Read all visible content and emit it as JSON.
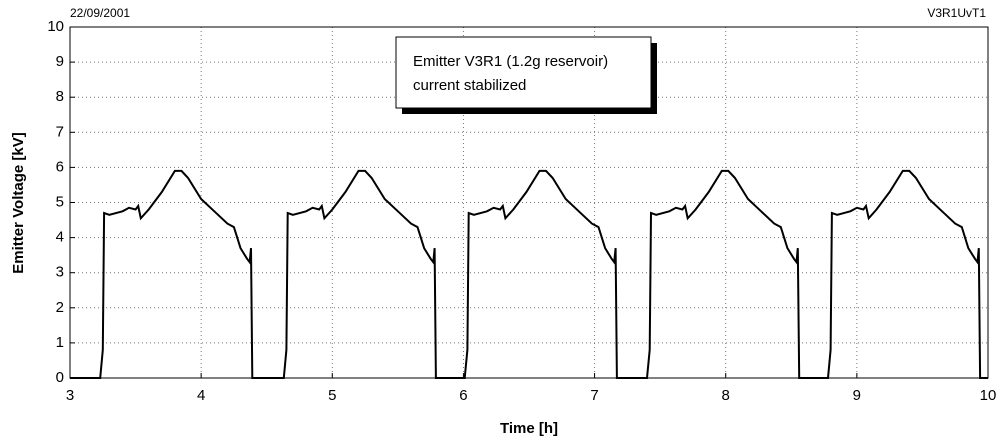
{
  "chart_data": {
    "type": "line",
    "header_left": "22/09/2001",
    "header_right": "V3R1UvT1",
    "annotation": [
      "Emitter V3R1 (1.2g reservoir)",
      "current stabilized"
    ],
    "x_label": "Time [h]",
    "y_label": "Emitter Voltage [kV]",
    "xlim": [
      3,
      10
    ],
    "xticks": [
      3,
      4,
      5,
      6,
      7,
      8,
      9,
      10
    ],
    "ylim": [
      0,
      10
    ],
    "yticks": [
      0,
      1,
      2,
      3,
      4,
      5,
      6,
      7,
      8,
      9,
      10
    ],
    "grid": true,
    "x": [
      3,
      3.23,
      3.25,
      3.26,
      3.3,
      3.4,
      3.45,
      3.5,
      3.52,
      3.54,
      3.6,
      3.7,
      3.8,
      3.85,
      3.9,
      4.0,
      4.1,
      4.2,
      4.25,
      4.3,
      4.35,
      4.37,
      4.38,
      4.39,
      4.63,
      4.65,
      4.66,
      4.7,
      4.8,
      4.85,
      4.9,
      4.92,
      4.94,
      5.0,
      5.1,
      5.2,
      5.25,
      5.3,
      5.4,
      5.5,
      5.6,
      5.65,
      5.7,
      5.75,
      5.77,
      5.78,
      5.79,
      6.01,
      6.03,
      6.04,
      6.08,
      6.18,
      6.23,
      6.28,
      6.3,
      6.32,
      6.38,
      6.48,
      6.58,
      6.63,
      6.68,
      6.78,
      6.88,
      6.98,
      7.03,
      7.08,
      7.13,
      7.15,
      7.16,
      7.17,
      7.4,
      7.42,
      7.43,
      7.47,
      7.57,
      7.62,
      7.67,
      7.69,
      7.71,
      7.77,
      7.87,
      7.97,
      8.02,
      8.07,
      8.17,
      8.27,
      8.37,
      8.42,
      8.47,
      8.52,
      8.54,
      8.55,
      8.56,
      8.78,
      8.8,
      8.81,
      8.85,
      8.95,
      9.0,
      9.05,
      9.07,
      9.09,
      9.15,
      9.25,
      9.35,
      9.4,
      9.45,
      9.55,
      9.65,
      9.75,
      9.8,
      9.85,
      9.9,
      9.92,
      9.93,
      9.94,
      10
    ],
    "series": [
      {
        "color": "#000000",
        "values": [
          0,
          0,
          0.8,
          4.7,
          4.65,
          4.75,
          4.85,
          4.8,
          4.9,
          4.55,
          4.8,
          5.3,
          5.9,
          5.9,
          5.7,
          5.1,
          4.75,
          4.4,
          4.3,
          3.7,
          3.4,
          3.3,
          3.7,
          0,
          0,
          0.8,
          4.7,
          4.65,
          4.75,
          4.85,
          4.8,
          4.9,
          4.55,
          4.8,
          5.3,
          5.9,
          5.9,
          5.7,
          5.1,
          4.75,
          4.4,
          4.3,
          3.7,
          3.4,
          3.3,
          3.7,
          0,
          0,
          0.8,
          4.7,
          4.65,
          4.75,
          4.85,
          4.8,
          4.9,
          4.55,
          4.8,
          5.3,
          5.9,
          5.9,
          5.7,
          5.1,
          4.75,
          4.4,
          4.3,
          3.7,
          3.4,
          3.3,
          3.7,
          0,
          0,
          0.8,
          4.7,
          4.65,
          4.75,
          4.85,
          4.8,
          4.9,
          4.55,
          4.8,
          5.3,
          5.9,
          5.9,
          5.7,
          5.1,
          4.75,
          4.4,
          4.3,
          3.7,
          3.4,
          3.3,
          3.7,
          0,
          0,
          0.8,
          4.7,
          4.65,
          4.75,
          4.85,
          4.8,
          4.9,
          4.55,
          4.8,
          5.3,
          5.9,
          5.9,
          5.7,
          5.1,
          4.75,
          4.4,
          4.3,
          3.7,
          3.4,
          3.3,
          3.7,
          0,
          0
        ]
      }
    ]
  }
}
